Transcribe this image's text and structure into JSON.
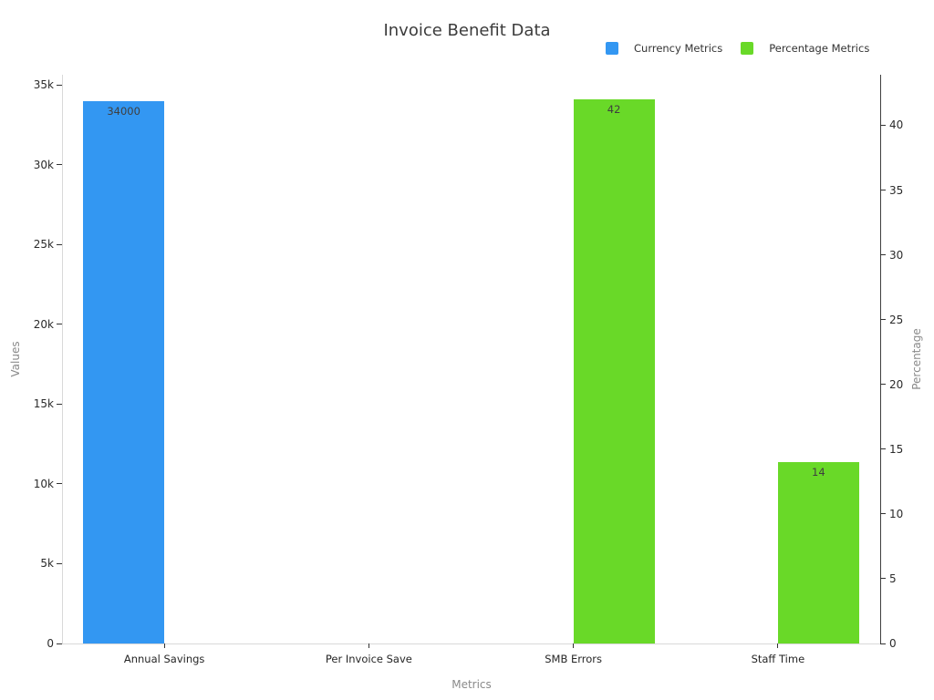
{
  "chart_data": {
    "type": "bar",
    "title": "Invoice Benefit Data",
    "xlabel": "Metrics",
    "categories": [
      "Annual Savings",
      "Per Invoice Save",
      "SMB Errors",
      "Staff Time"
    ],
    "series": [
      {
        "name": "Currency Metrics",
        "color": "#3397f2",
        "axis": "left",
        "values": [
          34000,
          0,
          null,
          null
        ],
        "bar_labels": [
          "34000",
          "",
          "",
          ""
        ]
      },
      {
        "name": "Percentage Metrics",
        "color": "#69d928",
        "axis": "right",
        "values": [
          null,
          null,
          42,
          14
        ],
        "bar_labels": [
          "",
          "",
          "42",
          "14"
        ]
      }
    ],
    "axes": {
      "left": {
        "label": "Values",
        "min": 0,
        "max": 35630,
        "ticks": [
          0,
          5000,
          10000,
          15000,
          20000,
          25000,
          30000,
          35000
        ],
        "tick_labels": [
          "0",
          "5k",
          "10k",
          "15k",
          "20k",
          "25k",
          "30k",
          "35k"
        ]
      },
      "right": {
        "label": "Percentage",
        "min": 0,
        "max": 43.9,
        "ticks": [
          0,
          5,
          10,
          15,
          20,
          25,
          30,
          35,
          40
        ],
        "tick_labels": [
          "0",
          "5",
          "10",
          "15",
          "20",
          "25",
          "30",
          "35",
          "40"
        ]
      }
    },
    "grid": false,
    "legend_position": "top-right",
    "background": "#ffffff"
  }
}
